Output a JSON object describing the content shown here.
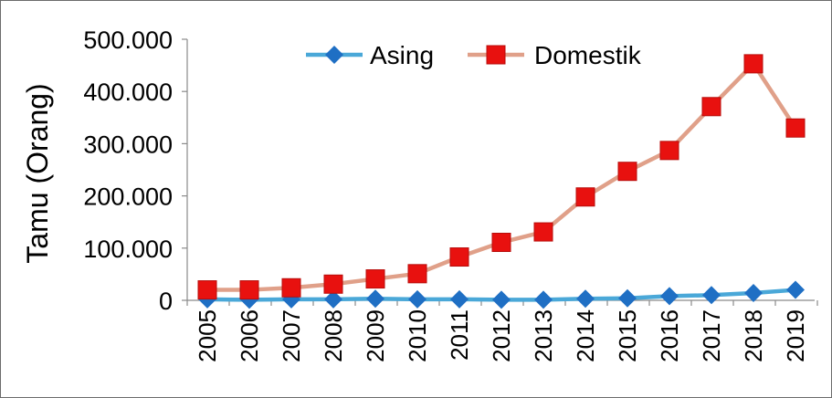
{
  "chart_data": {
    "type": "line",
    "title": "",
    "xlabel": "",
    "ylabel": "Tamu (Orang)",
    "categories": [
      "2005",
      "2006",
      "2007",
      "2008",
      "2009",
      "2010",
      "2011",
      "2012",
      "2013",
      "2014",
      "2015",
      "2016",
      "2017",
      "2018",
      "2019"
    ],
    "series": [
      {
        "name": "Asing",
        "color": "#4aa8d8",
        "marker_color": "#1f6fc4",
        "marker": "diamond",
        "values": [
          2000,
          1000,
          2000,
          2000,
          3000,
          2000,
          2000,
          1000,
          1000,
          3000,
          4000,
          8000,
          10000,
          14000,
          20000
        ]
      },
      {
        "name": "Domestik",
        "color": "#e0a089",
        "marker_color": "#e8110f",
        "marker": "square",
        "values": [
          20000,
          20000,
          24000,
          31000,
          41000,
          51000,
          83000,
          111000,
          131000,
          198000,
          247000,
          287000,
          371000,
          453000,
          330000
        ]
      }
    ],
    "ylim": [
      0,
      500000
    ],
    "yticks": [
      {
        "value": 0,
        "label": "0"
      },
      {
        "value": 100000,
        "label": "100.000"
      },
      {
        "value": 200000,
        "label": "200.000"
      },
      {
        "value": 300000,
        "label": "300.000"
      },
      {
        "value": 400000,
        "label": "400.000"
      },
      {
        "value": 500000,
        "label": "500.000"
      }
    ],
    "grid": false,
    "legend_position": "top"
  }
}
